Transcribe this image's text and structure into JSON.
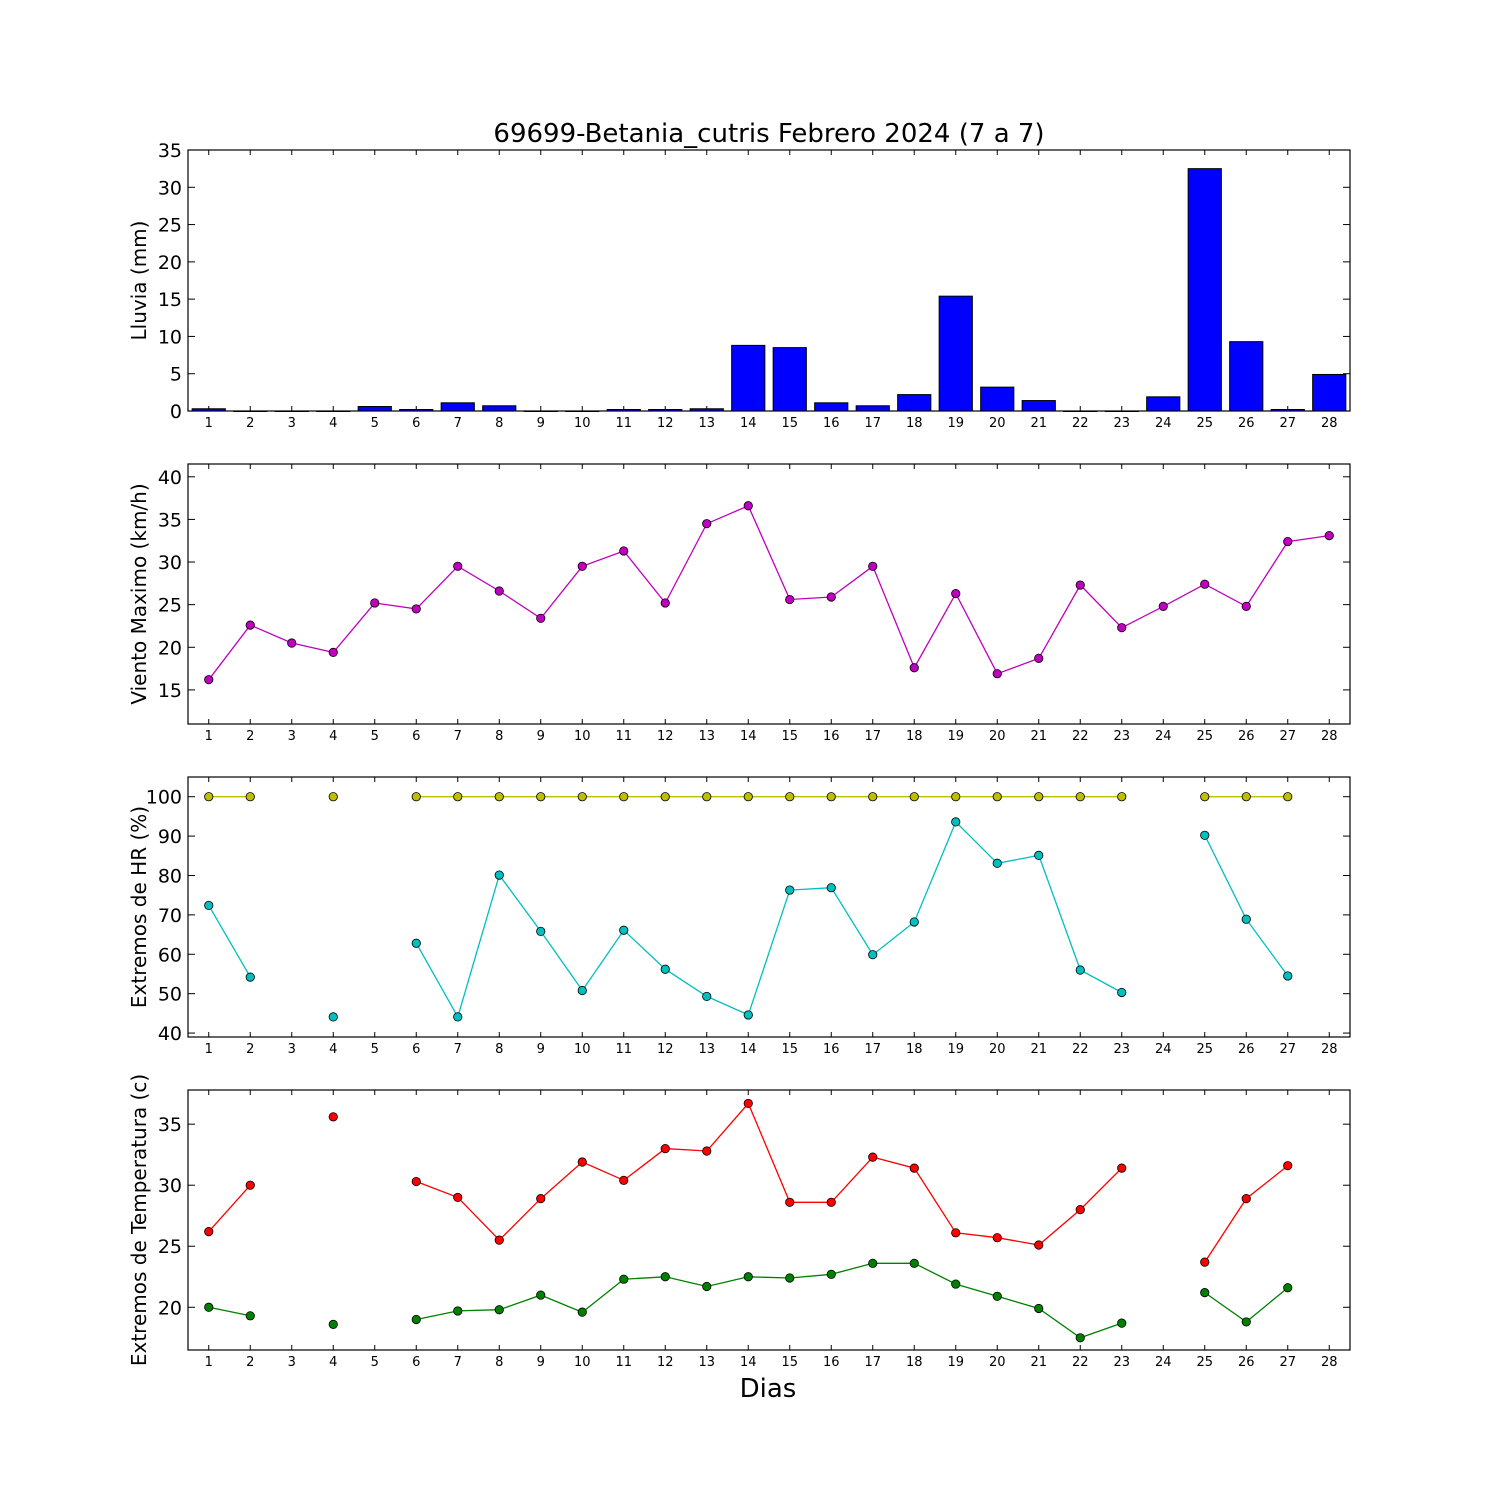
{
  "title": "69699-Betania_cutris Febrero 2024  (7 a 7)",
  "xlabel": "Dias",
  "days": [
    1,
    2,
    3,
    4,
    5,
    6,
    7,
    8,
    9,
    10,
    11,
    12,
    13,
    14,
    15,
    16,
    17,
    18,
    19,
    20,
    21,
    22,
    23,
    24,
    25,
    26,
    27,
    28
  ],
  "chart_data": [
    {
      "type": "bar",
      "ylabel": "Lluvia (mm)",
      "ylim": [
        0,
        35
      ],
      "yticks": [
        0,
        5,
        10,
        15,
        20,
        25,
        30,
        35
      ],
      "color": "#0000ff",
      "values": [
        0.3,
        0,
        0,
        0,
        0.6,
        0.2,
        1.1,
        0.7,
        0,
        0,
        0.2,
        0.2,
        0.3,
        8.8,
        8.5,
        1.1,
        0.7,
        2.2,
        15.4,
        3.2,
        1.4,
        0,
        0,
        1.9,
        32.5,
        9.3,
        0.2,
        4.9
      ]
    },
    {
      "type": "line",
      "ylabel": "Viento Maximo (km/h)",
      "ylim": [
        11,
        41.5
      ],
      "yticks": [
        15,
        20,
        25,
        30,
        35,
        40
      ],
      "series": [
        {
          "color": "#bf00bf",
          "values": [
            16.2,
            22.6,
            20.5,
            19.4,
            25.2,
            24.5,
            29.5,
            26.6,
            23.4,
            29.5,
            31.3,
            25.2,
            34.5,
            36.6,
            25.6,
            25.9,
            29.5,
            17.6,
            26.3,
            16.9,
            18.7,
            27.3,
            22.3,
            24.8,
            27.4,
            24.8,
            32.4,
            33.1
          ]
        }
      ]
    },
    {
      "type": "line",
      "ylabel": "Extremos de HR (%)",
      "ylim": [
        39,
        105
      ],
      "yticks": [
        40,
        50,
        60,
        70,
        80,
        90,
        100
      ],
      "series": [
        {
          "color": "#bfbf00",
          "values": [
            100,
            100,
            null,
            100,
            null,
            100,
            100,
            100,
            100,
            100,
            100,
            100,
            100,
            100,
            100,
            100,
            100,
            100,
            100,
            100,
            100,
            100,
            100,
            null,
            100,
            100,
            100,
            null
          ]
        },
        {
          "color": "#00bfbf",
          "values": [
            72.4,
            54.2,
            null,
            44.1,
            null,
            62.8,
            44.1,
            80.1,
            65.8,
            50.8,
            66.1,
            56.2,
            49.3,
            44.6,
            76.3,
            76.9,
            59.9,
            68.2,
            93.6,
            83.1,
            85.1,
            56.0,
            50.3,
            null,
            90.2,
            68.9,
            54.5,
            null
          ]
        }
      ]
    },
    {
      "type": "line",
      "ylabel": "Extremos de Temperatura (c)",
      "ylim": [
        16.5,
        37.8
      ],
      "yticks": [
        20,
        25,
        30,
        35
      ],
      "series": [
        {
          "color": "#ff0000",
          "values": [
            26.2,
            30.0,
            null,
            35.6,
            null,
            30.3,
            29.0,
            25.5,
            28.9,
            31.9,
            30.4,
            33.0,
            32.8,
            36.7,
            28.6,
            28.6,
            32.3,
            31.4,
            26.1,
            25.7,
            25.1,
            28.0,
            31.4,
            null,
            23.7,
            28.9,
            31.6,
            null
          ]
        },
        {
          "color": "#008000",
          "values": [
            20.0,
            19.3,
            null,
            18.6,
            null,
            19.0,
            19.7,
            19.8,
            21.0,
            19.6,
            22.3,
            22.5,
            21.7,
            22.5,
            22.4,
            22.7,
            23.6,
            23.6,
            21.9,
            20.9,
            19.9,
            17.5,
            18.7,
            null,
            21.2,
            18.8,
            21.6,
            null
          ]
        }
      ]
    }
  ]
}
